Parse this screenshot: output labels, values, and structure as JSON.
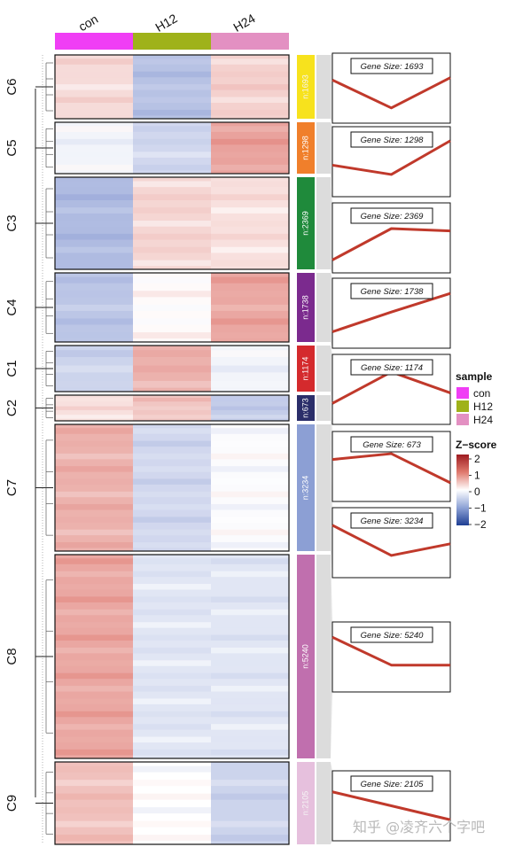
{
  "chart_data": {
    "type": "heatmap",
    "columns": [
      "con",
      "H12",
      "H24"
    ],
    "column_colors": [
      "#f03ef5",
      "#9fb21a",
      "#e390c2"
    ],
    "clusters": [
      {
        "id": "C6",
        "size_label": "n:1693",
        "panel_label": "Gene Size: 1693",
        "n": 1693,
        "bar_color": "#f7e21d",
        "z": [
          0.35,
          -0.85,
          0.45
        ]
      },
      {
        "id": "C5",
        "size_label": "n:1298",
        "panel_label": "Gene Size: 1298",
        "n": 1298,
        "bar_color": "#f07f2b",
        "z": [
          -0.15,
          -0.55,
          0.9
        ]
      },
      {
        "id": "C3",
        "size_label": "n:2369",
        "panel_label": "Gene Size: 2369",
        "n": 2369,
        "bar_color": "#1f8a3b",
        "z": [
          -0.95,
          0.4,
          0.3
        ]
      },
      {
        "id": "C4",
        "size_label": "n:1738",
        "panel_label": "Gene Size: 1738",
        "n": 1738,
        "bar_color": "#7b2a8e",
        "z": [
          -0.8,
          0.05,
          0.85
        ]
      },
      {
        "id": "C1",
        "size_label": "n:1174",
        "panel_label": "Gene Size: 1174",
        "n": 1174,
        "bar_color": "#d42a2d",
        "z": [
          -0.6,
          0.75,
          -0.15
        ]
      },
      {
        "id": "C2",
        "size_label": "n:673",
        "panel_label": "Gene Size: 673",
        "n": 673,
        "bar_color": "#2b2e6a",
        "z": [
          0.3,
          0.55,
          -0.7
        ]
      },
      {
        "id": "C7",
        "size_label": "n:3234",
        "panel_label": "Gene Size: 3234",
        "n": 3234,
        "bar_color": "#8c9fd4",
        "z": [
          0.75,
          -0.55,
          -0.05
        ]
      },
      {
        "id": "C8",
        "size_label": "n:5240",
        "panel_label": "Gene Size: 5240",
        "n": 5240,
        "bar_color": "#c06fae",
        "z": [
          0.85,
          -0.35,
          -0.35
        ]
      },
      {
        "id": "C9",
        "size_label": "n:2105",
        "panel_label": "Gene Size: 2105",
        "n": 2105,
        "bar_color": "#e6c0dd",
        "z": [
          0.6,
          0.0,
          -0.6
        ]
      }
    ],
    "legend_sample": {
      "title": "sample",
      "entries": [
        "con",
        "H12",
        "H24"
      ]
    },
    "legend_zscore": {
      "title": "Z−score",
      "ticks": [
        "2",
        "1",
        "0",
        "−1",
        "−2"
      ],
      "range": [
        -2,
        2
      ]
    }
  },
  "watermark": "知乎 @凌齐六个字吧"
}
